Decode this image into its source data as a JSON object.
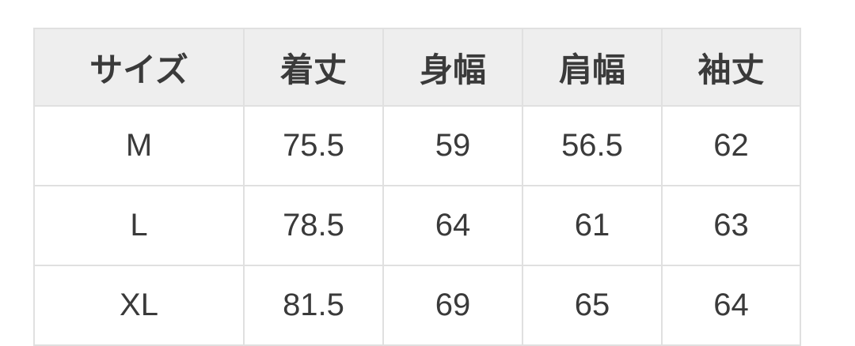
{
  "table": {
    "headers": [
      "サイズ",
      "着丈",
      "身幅",
      "肩幅",
      "袖丈"
    ],
    "rows": [
      [
        "M",
        "75.5",
        "59",
        "56.5",
        "62"
      ],
      [
        "L",
        "78.5",
        "64",
        "61",
        "63"
      ],
      [
        "XL",
        "81.5",
        "69",
        "65",
        "64"
      ]
    ]
  },
  "colors": {
    "header_bg": "#eeeeee",
    "border": "#e0e0e0",
    "text": "#3a3a3a"
  }
}
